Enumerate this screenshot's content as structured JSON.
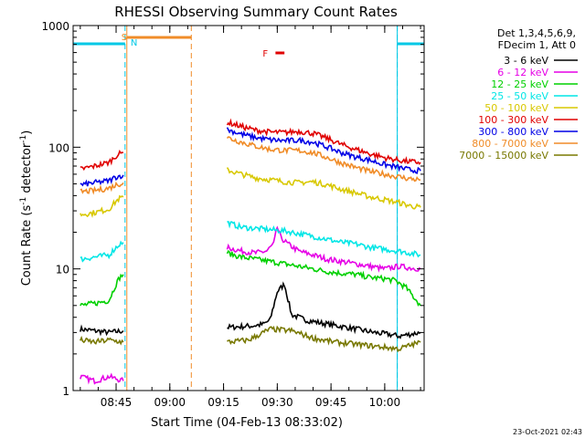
{
  "chart_data": {
    "type": "line",
    "title": "RHESSI Observing Summary Count Rates",
    "xlabel": "Start Time (04-Feb-13 08:33:02)",
    "ylabel_prefix": "Count Rate (s",
    "ylabel_sup": "-1",
    "ylabel_suffix": " detector",
    "ylabel_sup2": "-1",
    "ylabel_close": ")",
    "footer": "23-Oct-2021 02:43",
    "yscale": "log",
    "ylim": [
      1,
      1000
    ],
    "xlim_min": [
      513,
      611
    ],
    "x_ticks": [
      {
        "label": "08:45",
        "min": 525
      },
      {
        "label": "09:00",
        "min": 540
      },
      {
        "label": "09:15",
        "min": 555
      },
      {
        "label": "09:30",
        "min": 570
      },
      {
        "label": "09:45",
        "min": 585
      },
      {
        "label": "10:00",
        "min": 600
      }
    ],
    "y_ticks": [
      {
        "label": "1",
        "value": 1
      },
      {
        "label": "10",
        "value": 10
      },
      {
        "label": "100",
        "value": 100
      },
      {
        "label": "1000",
        "value": 1000
      }
    ],
    "legend": {
      "header": [
        "Det 1,3,4,5,6,9,",
        "FDecim 1, Att 0"
      ],
      "placement": "right"
    },
    "annotations": {
      "saa_label": "S",
      "night_label": "N",
      "flare_label": "F"
    },
    "markers": {
      "night_min": [
        513,
        527.5,
        603.5,
        611
      ],
      "saa_min": [
        528,
        546
      ],
      "flare_min": [
        569.5,
        572
      ]
    },
    "colors": {
      "night": "#00c8e6",
      "saa": "#f08c28",
      "flare": "#e00000"
    },
    "series": [
      {
        "name": "3 - 6 keV",
        "color": "#000000",
        "segments": [
          {
            "x": [
              515,
              519,
              523,
              527
            ],
            "y": [
              3.2,
              3.1,
              3.0,
              3.1
            ]
          },
          {
            "x": [
              556,
              563,
              566,
              568,
              570,
              572,
              574,
              578,
              582,
              587,
              592,
              597,
              601,
              604,
              607,
              610
            ],
            "y": [
              3.3,
              3.4,
              3.5,
              3.8,
              6.5,
              7.5,
              4.2,
              3.8,
              3.6,
              3.4,
              3.2,
              3.0,
              2.9,
              2.8,
              2.9,
              3.0
            ]
          }
        ]
      },
      {
        "name": "6 - 12 keV",
        "color": "#e600e6",
        "segments": [
          {
            "x": [
              515,
              519,
              523,
              527
            ],
            "y": [
              1.3,
              1.2,
              1.3,
              1.2
            ]
          },
          {
            "x": [
              556,
              560,
              564,
              567,
              569,
              570,
              571,
              573,
              576,
              580,
              584,
              588,
              592,
              596,
              600,
              604,
              607,
              610
            ],
            "y": [
              15,
              14,
              13.5,
              14,
              16,
              22,
              18,
              16,
              14,
              13,
              12,
              11.5,
              11,
              10.5,
              10,
              10.5,
              10.2,
              10
            ]
          }
        ]
      },
      {
        "name": "12 - 25 keV",
        "color": "#00d000",
        "segments": [
          {
            "x": [
              515,
              519,
              523,
              525,
              526,
              527
            ],
            "y": [
              5.0,
              5.2,
              5.5,
              7.5,
              8.5,
              9.0
            ]
          },
          {
            "x": [
              556,
              560,
              564,
              568,
              572,
              576,
              580,
              584,
              588,
              592,
              596,
              600,
              603,
              606,
              610
            ],
            "y": [
              13.5,
              12.5,
              12,
              11.5,
              11,
              10.5,
              10,
              9.5,
              9.2,
              9.0,
              8.5,
              8.3,
              8.0,
              7.0,
              5.0
            ]
          }
        ]
      },
      {
        "name": "25 - 50 keV",
        "color": "#00e6e6",
        "segments": [
          {
            "x": [
              515,
              519,
              523,
              525,
              526,
              527
            ],
            "y": [
              12,
              12.5,
              13,
              15,
              16,
              16.5
            ]
          },
          {
            "x": [
              556,
              560,
              564,
              568,
              572,
              576,
              580,
              584,
              588,
              592,
              596,
              600,
              604,
              607,
              610
            ],
            "y": [
              24,
              22,
              21.5,
              21,
              20.5,
              19.5,
              18.5,
              17.5,
              16.5,
              16,
              15,
              14.5,
              14,
              13.5,
              13
            ]
          }
        ]
      },
      {
        "name": "50 - 100 keV",
        "color": "#d8c800",
        "segments": [
          {
            "x": [
              515,
              519,
              523,
              525,
              526,
              527
            ],
            "y": [
              28,
              29,
              31,
              36,
              38,
              39
            ]
          },
          {
            "x": [
              556,
              560,
              564,
              568,
              572,
              576,
              580,
              584,
              588,
              592,
              596,
              600,
              604,
              607,
              610
            ],
            "y": [
              65,
              60,
              56,
              54,
              52,
              51,
              52,
              49,
              45,
              42,
              39,
              37,
              35,
              33,
              32
            ]
          }
        ]
      },
      {
        "name": "100 - 300 keV",
        "color": "#e00000",
        "segments": [
          {
            "x": [
              515,
              519,
              523,
              525,
              526,
              527
            ],
            "y": [
              66,
              70,
              75,
              85,
              88,
              90
            ]
          },
          {
            "x": [
              556,
              560,
              564,
              568,
              572,
              576,
              580,
              584,
              588,
              592,
              596,
              600,
              604,
              607,
              610
            ],
            "y": [
              160,
              148,
              138,
              133,
              132,
              135,
              130,
              118,
              105,
              96,
              88,
              82,
              78,
              76,
              75
            ]
          }
        ]
      },
      {
        "name": "300 - 800 keV",
        "color": "#0000e6",
        "segments": [
          {
            "x": [
              515,
              519,
              523,
              525,
              526,
              527
            ],
            "y": [
              49,
              51,
              53,
              57,
              58,
              59
            ]
          },
          {
            "x": [
              556,
              560,
              564,
              568,
              572,
              576,
              580,
              584,
              588,
              592,
              596,
              600,
              604,
              607,
              610
            ],
            "y": [
              140,
              128,
              120,
              115,
              113,
              114,
              110,
              100,
              90,
              83,
              78,
              72,
              68,
              65,
              64
            ]
          }
        ]
      },
      {
        "name": "800 - 7000 keV",
        "color": "#f08c28",
        "segments": [
          {
            "x": [
              515,
              519,
              523,
              525,
              526,
              527
            ],
            "y": [
              43,
              44,
              46,
              49,
              50,
              51
            ]
          },
          {
            "x": [
              556,
              560,
              564,
              568,
              572,
              576,
              580,
              584,
              588,
              592,
              596,
              600,
              604,
              607,
              610
            ],
            "y": [
              120,
              110,
              102,
              96,
              94,
              94,
              90,
              82,
              74,
              68,
              63,
              60,
              57,
              55,
              54
            ]
          }
        ]
      },
      {
        "name": "7000 - 15000 keV",
        "color": "#787800",
        "segments": [
          {
            "x": [
              515,
              519,
              523,
              527
            ],
            "y": [
              2.6,
              2.5,
              2.6,
              2.5
            ]
          },
          {
            "x": [
              556,
              562,
              568,
              574,
              580,
              586,
              592,
              598,
              604,
              608,
              610
            ],
            "y": [
              2.5,
              2.6,
              3.2,
              3.1,
              2.7,
              2.5,
              2.4,
              2.3,
              2.2,
              2.4,
              2.5
            ]
          }
        ]
      }
    ]
  }
}
